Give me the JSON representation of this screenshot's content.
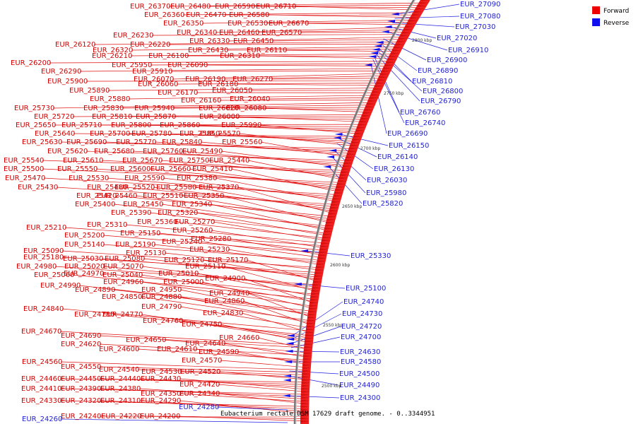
{
  "caption": "Eubacterium rectale DSM 17629 draft genome. - 0..3344951",
  "legend": [
    {
      "label": "Forward",
      "color": "#ee0000"
    },
    {
      "label": "Reverse",
      "color": "#1010ee"
    }
  ],
  "scale_ticks": [
    "2800 kbp",
    "2750 kbp",
    "2700 kbp",
    "2650 kbp",
    "2600 kbp",
    "2550 kbp",
    "2500 kbp"
  ],
  "forward_labels": [
    "EUR_26370",
    "EUR_26480",
    "EUR_26590",
    "EUR_26710",
    "EUR_26360",
    "EUR_26470",
    "EUR_26580",
    "EUR_26350",
    "EUR_26530",
    "EUR_26670",
    "EUR_26340",
    "EUR_26460",
    "EUR_26570",
    "EUR_26230",
    "EUR_26330",
    "EUR_26450",
    "EUR_26120",
    "EUR_26220",
    "EUR_26320",
    "EUR_26430",
    "EUR_26110",
    "EUR_26210",
    "EUR_26100",
    "EUR_26310",
    "EUR_26200",
    "EUR_25950",
    "EUR_26090",
    "EUR_26290",
    "EUR_25910",
    "EUR_26070",
    "EUR_26190",
    "EUR_26270",
    "EUR_25900",
    "EUR_26060",
    "EUR_26180",
    "EUR_25890",
    "EUR_26050",
    "EUR_26170",
    "EUR_25880",
    "EUR_26040",
    "EUR_26160",
    "EUR_25730",
    "EUR_25830",
    "EUR_25940",
    "EUR_26020",
    "EUR_26080",
    "EUR_25720",
    "EUR_25810",
    "EUR_25870",
    "EUR_26000",
    "EUR_25650",
    "EUR_25710",
    "EUR_25800",
    "EUR_25860",
    "EUR_25990",
    "EUR_25640",
    "EUR_25700",
    "EUR_25780",
    "EUR_25850",
    "EUR_25570",
    "EUR_25630",
    "EUR_25690",
    "EUR_25770",
    "EUR_25840",
    "EUR_25560",
    "EUR_25620",
    "EUR_25680",
    "EUR_25760",
    "EUR_25490",
    "EUR_25540",
    "EUR_25610",
    "EUR_25670",
    "EUR_25750",
    "EUR_25440",
    "EUR_25500",
    "EUR_25550",
    "EUR_25600",
    "EUR_25660",
    "EUR_25410",
    "EUR_25470",
    "EUR_25530",
    "EUR_25590",
    "EUR_25380",
    "EUR_25430",
    "EUR_25480",
    "EUR_25520",
    "EUR_25580",
    "EUR_25370",
    "EUR_25420",
    "EUR_25460",
    "EUR_25510",
    "EUR_25350",
    "EUR_25400",
    "EUR_25450",
    "EUR_25340",
    "EUR_25390",
    "EUR_25320",
    "EUR_25360",
    "EUR_25270",
    "EUR_25310",
    "EUR_25210",
    "EUR_25260",
    "EUR_25150",
    "EUR_25200",
    "EUR_25280",
    "EUR_25240",
    "EUR_25140",
    "EUR_25190",
    "EUR_25230",
    "EUR_25090",
    "EUR_25130",
    "EUR_25180",
    "EUR_25030",
    "EUR_25080",
    "EUR_25120",
    "EUR_25170",
    "EUR_24980",
    "EUR_25020",
    "EUR_25070",
    "EUR_25110",
    "EUR_24970",
    "EUR_25010",
    "EUR_25060",
    "EUR_25040",
    "EUR_24900",
    "EUR_24960",
    "EUR_25000",
    "EUR_24990",
    "EUR_24890",
    "EUR_24950",
    "EUR_24940",
    "EUR_24850",
    "EUR_24880",
    "EUR_24860",
    "EUR_24790",
    "EUR_24840",
    "EUR_24830",
    "EUR_24780",
    "EUR_24770",
    "EUR_24760",
    "EUR_24750",
    "EUR_24670",
    "EUR_24690",
    "EUR_24660",
    "EUR_24650",
    "EUR_24620",
    "EUR_24640",
    "EUR_24600",
    "EUR_24610",
    "EUR_24590",
    "EUR_24570",
    "EUR_24560",
    "EUR_24550",
    "EUR_24540",
    "EUR_24530",
    "EUR_24520",
    "EUR_24460",
    "EUR_24450",
    "EUR_24440",
    "EUR_24430",
    "EUR_24420",
    "EUR_24410",
    "EUR_24390",
    "EUR_24380",
    "EUR_24350",
    "EUR_24340",
    "EUR_24330",
    "EUR_24320",
    "EUR_24310",
    "EUR_24290",
    "EUR_24240",
    "EUR_24220",
    "EUR_24200"
  ],
  "reverse_labels": [
    "EUR_27090",
    "EUR_27080",
    "EUR_27030",
    "EUR_27020",
    "EUR_26910",
    "EUR_26900",
    "EUR_26890",
    "EUR_26810",
    "EUR_26800",
    "EUR_26790",
    "EUR_26760",
    "EUR_26740",
    "EUR_26690",
    "EUR_26150",
    "EUR_26140",
    "EUR_26130",
    "EUR_26030",
    "EUR_25980",
    "EUR_25820",
    "EUR_25330",
    "EUR_25100",
    "EUR_24740",
    "EUR_24730",
    "EUR_24720",
    "EUR_24700",
    "EUR_24630",
    "EUR_24580",
    "EUR_24500",
    "EUR_24490",
    "EUR_24300",
    "EUR_24280",
    "EUR_24260"
  ]
}
